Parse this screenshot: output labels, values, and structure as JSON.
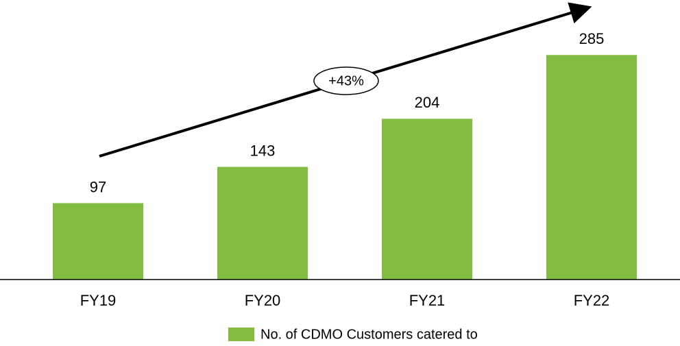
{
  "chart_data": {
    "type": "bar",
    "categories": [
      "FY19",
      "FY20",
      "FY21",
      "FY22"
    ],
    "values": [
      97,
      143,
      204,
      285
    ],
    "color": "#82bc41",
    "ylim": [
      0,
      320
    ],
    "annotation": "+43%",
    "series_name": "No. of CDMO Customers catered to"
  }
}
